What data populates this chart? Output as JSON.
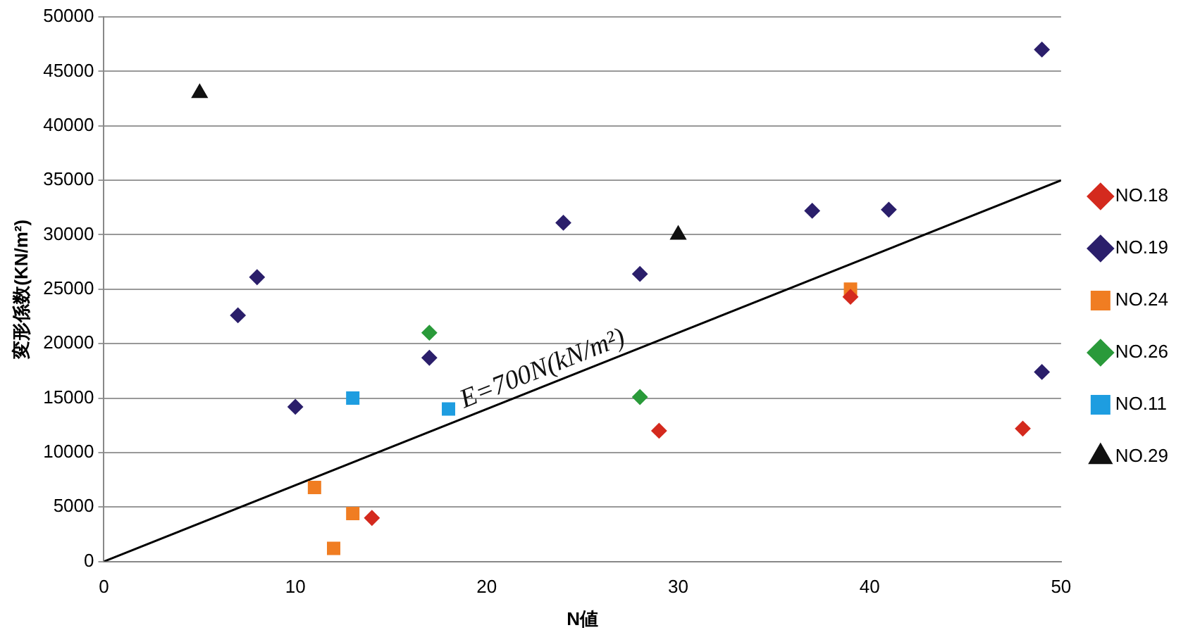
{
  "chart_data": {
    "type": "scatter",
    "xlabel": "N値",
    "ylabel": "変形係数(KN/m²)",
    "xlim": [
      0,
      50
    ],
    "xticks": [
      0,
      10,
      20,
      30,
      40,
      50
    ],
    "ylim": [
      0,
      50000
    ],
    "yticks": [
      0,
      5000,
      10000,
      15000,
      20000,
      25000,
      30000,
      35000,
      40000,
      45000,
      50000
    ],
    "grid": "y",
    "legend": "right",
    "annotations": [
      {
        "text": "E=700N(kN/m²)",
        "x": 19,
        "y": 13300
      }
    ],
    "series": [
      {
        "name": "NO.18",
        "color": "#d42a1e",
        "marker": "diamond",
        "x": [
          14,
          29,
          39,
          48
        ],
        "values": [
          4000,
          12000,
          24300,
          12200
        ]
      },
      {
        "name": "NO.19",
        "color": "#2b1f6b",
        "marker": "diamond",
        "x": [
          7,
          8,
          10,
          17,
          24,
          28,
          37,
          41,
          49,
          49
        ],
        "values": [
          22600,
          26100,
          14200,
          18700,
          31100,
          26400,
          32200,
          32300,
          47000,
          17400
        ]
      },
      {
        "name": "NO.24",
        "color": "#f07d22",
        "marker": "square",
        "x": [
          11,
          12,
          13,
          39
        ],
        "values": [
          6800,
          1200,
          4400,
          25000
        ]
      },
      {
        "name": "NO.26",
        "color": "#2a9a3a",
        "marker": "diamond",
        "x": [
          17,
          28
        ],
        "values": [
          21000,
          15100
        ]
      },
      {
        "name": "NO.11",
        "color": "#1e9de0",
        "marker": "square",
        "x": [
          13,
          18
        ],
        "values": [
          15000,
          14000
        ]
      },
      {
        "name": "NO.29",
        "color": "#111111",
        "marker": "triangle",
        "x": [
          5,
          30
        ],
        "values": [
          43000,
          30000
        ]
      },
      {
        "type": "line",
        "color": "#000000",
        "marker": "none",
        "x": [
          0,
          50
        ],
        "values": [
          0,
          35000
        ]
      }
    ]
  }
}
